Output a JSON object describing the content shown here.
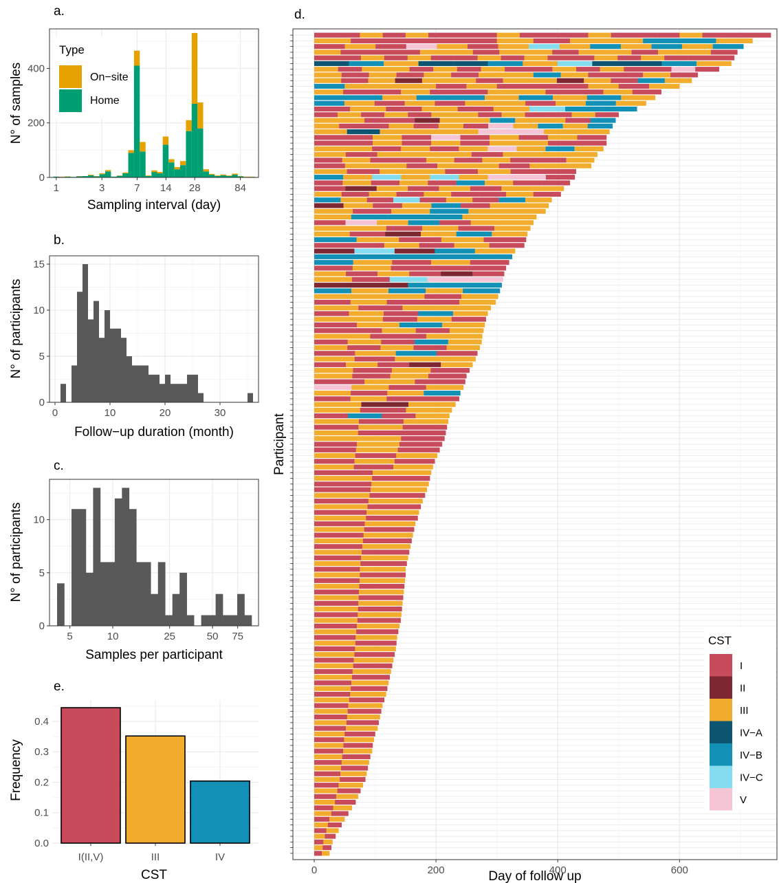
{
  "figure": {
    "colors": {
      "I": "#C84B5C",
      "II": "#7D2733",
      "III": "#F2AD2F",
      "IV-A": "#0D5570",
      "IV-B": "#1390B5",
      "IV-C": "#86DCEF",
      "V": "#F5C5D6",
      "on_site": "#E6A000",
      "home": "#009E73",
      "hist": "#595959",
      "grid_major": "#EBEBEB",
      "grid_minor": "#F5F5F5"
    }
  },
  "chart_data": [
    {
      "panel": "a.",
      "type": "bar",
      "stacked": true,
      "xlabel": "Sampling interval (day)",
      "ylabel": "N° of samples",
      "xscale": "log",
      "xticks": [
        1,
        3,
        7,
        14,
        28,
        84
      ],
      "xtick_labels": [
        "1",
        "3",
        "7",
        "14",
        "28",
        "84"
      ],
      "yticks": [
        0,
        200,
        400
      ],
      "ytick_labels": [
        "0",
        "200",
        "400"
      ],
      "ylim": [
        0,
        545
      ],
      "legend": {
        "title": "Type",
        "placement": "top-left",
        "entries": [
          "On−site",
          "Home"
        ]
      },
      "x": [
        1.0,
        1.15,
        1.32,
        1.52,
        1.74,
        2.0,
        2.3,
        2.64,
        3.03,
        3.48,
        4.0,
        4.6,
        5.28,
        6.06,
        6.96,
        8.0,
        9.19,
        10.6,
        12.1,
        13.9,
        16.0,
        18.4,
        21.1,
        24.3,
        27.9,
        32.0,
        36.8,
        42.2,
        48.5,
        55.7,
        64.0,
        73.5,
        84.4,
        97.0,
        111.0
      ],
      "series": [
        {
          "name": "Home",
          "values": [
            3,
            2,
            3,
            2,
            4,
            5,
            8,
            4,
            12,
            22,
            3,
            6,
            15,
            90,
            410,
            95,
            5,
            20,
            15,
            120,
            55,
            30,
            45,
            170,
            270,
            180,
            22,
            10,
            5,
            8,
            5,
            10,
            4,
            2,
            2
          ]
        },
        {
          "name": "On−site",
          "values": [
            0,
            1,
            1,
            0,
            1,
            0,
            2,
            1,
            3,
            5,
            0,
            1,
            3,
            10,
            55,
            35,
            2,
            6,
            5,
            30,
            12,
            8,
            15,
            40,
            260,
            95,
            8,
            3,
            2,
            3,
            2,
            4,
            1,
            1,
            1
          ]
        }
      ]
    },
    {
      "panel": "b.",
      "type": "bar",
      "xlabel": "Follow−up duration (month)",
      "ylabel": "N° of participants",
      "xlim": [
        0,
        37
      ],
      "xticks": [
        0,
        10,
        20,
        30
      ],
      "xtick_labels": [
        "0",
        "10",
        "20",
        "30"
      ],
      "yticks": [
        0,
        5,
        10,
        15
      ],
      "ytick_labels": [
        "0",
        "5",
        "10",
        "15"
      ],
      "ylim": [
        0,
        15.9
      ],
      "bin_width": 1,
      "x": [
        1.5,
        2.5,
        3.5,
        4.5,
        5.5,
        6.5,
        7.5,
        8.5,
        9.5,
        10.5,
        11.5,
        12.5,
        13.5,
        14.5,
        15.5,
        16.5,
        17.5,
        18.5,
        19.5,
        20.5,
        21.5,
        22.5,
        23.5,
        24.5,
        25.5,
        26.5,
        35.5
      ],
      "values": [
        2,
        0,
        4,
        12,
        15,
        9,
        11,
        7,
        10,
        8,
        8,
        7,
        5,
        4,
        4,
        4,
        3,
        3,
        2,
        3,
        2,
        2,
        2,
        3,
        3,
        1,
        1
      ]
    },
    {
      "panel": "c.",
      "type": "bar",
      "xlabel": "Samples per participant",
      "ylabel": "N° of participants",
      "xscale": "log",
      "xticks": [
        5,
        10,
        25,
        50,
        75
      ],
      "xtick_labels": [
        "5",
        "10",
        "25",
        "50",
        "75"
      ],
      "yticks": [
        0,
        5,
        10
      ],
      "ytick_labels": [
        "0",
        "5",
        "10"
      ],
      "ylim": [
        0,
        13.8
      ],
      "values": [
        4,
        0,
        11,
        11,
        5,
        13,
        6,
        6,
        12,
        13,
        11,
        6,
        6,
        3,
        6,
        1,
        3,
        5,
        1,
        0,
        1,
        1,
        3,
        1,
        1,
        3,
        1
      ]
    },
    {
      "panel": "d.",
      "type": "timeline",
      "xlabel": "Day of follow up",
      "ylabel": "Participant",
      "xlim": [
        -35,
        760
      ],
      "xticks": [
        0,
        200,
        400,
        600
      ],
      "xtick_labels": [
        "0",
        "200",
        "400",
        "600"
      ],
      "n_participants": 145,
      "legend": {
        "title": "CST",
        "placement": "bottom-right",
        "entries": [
          "I",
          "II",
          "III",
          "IV−A",
          "IV−B",
          "IV−C",
          "V"
        ]
      },
      "durations": [
        750,
        720,
        705,
        695,
        690,
        685,
        665,
        630,
        620,
        600,
        570,
        560,
        545,
        530,
        500,
        495,
        490,
        485,
        480,
        480,
        475,
        465,
        460,
        455,
        430,
        428,
        420,
        410,
        405,
        390,
        385,
        380,
        365,
        360,
        355,
        350,
        348,
        345,
        330,
        325,
        320,
        315,
        312,
        310,
        308,
        305,
        302,
        298,
        290,
        285,
        282,
        280,
        278,
        276,
        275,
        272,
        268,
        265,
        260,
        255,
        250,
        248,
        245,
        240,
        238,
        232,
        226,
        222,
        220,
        218,
        216,
        214,
        210,
        206,
        202,
        198,
        195,
        192,
        190,
        188,
        185,
        182,
        178,
        175,
        172,
        170,
        166,
        164,
        162,
        160,
        158,
        156,
        154,
        152,
        150,
        150,
        149,
        148,
        147,
        146,
        145,
        144,
        143,
        142,
        140,
        138,
        136,
        135,
        134,
        132,
        130,
        128,
        126,
        124,
        122,
        120,
        118,
        115,
        112,
        110,
        108,
        106,
        104,
        100,
        98,
        96,
        95,
        92,
        90,
        88,
        86,
        84,
        80,
        76,
        72,
        68,
        62,
        56,
        50,
        45,
        40,
        35,
        30,
        28,
        25
      ],
      "cst_sequences": [
        "I I III I III I I I III I I I III I I I III I I I",
        "III I I I I III I III III IV-B IV-B III",
        "I III I V III I III IV-C III IV-B III IV-B III IV-B",
        "III I I I III III I III III I III III I III III I",
        "I I III I III I I III I III I I III I III I I I",
        "IV-A IV-B III IV-A IV-A IV-B III IV-C IV-A IV-A IV-B III",
        "III I III III I III I III I I III I III I I V I",
        "III I III I III I III III IV-B III I I III I",
        "III I III II III III I III III II III I IV-B III",
        "IV-B III III III I III I I I III I III",
        "III I I III I I III III I I III I",
        "IV-B IV-B III IV-B IV-B III IV-B III IV-B III",
        "IV-B III I III I III III I III IV-B III",
        "I III I III I III IV-C IV-B IV-B",
        "I III I III I III III I III I I III I",
        "III III I I II III III IV-B III III I IV-B",
        "III I I III I III I V III IV-B III IV-B",
        "III IV-A III III III V V III III",
        "I I III I V I III I III I",
        "I I III I III I III III I I",
        "III III I III I III V III IV-B III",
        "III I III III III I III III III",
        "I III I I III I III I I III",
        "I III III I III III I III III",
        "III I III III I III I I",
        "IV-B III IV-C III IV-C III V V I",
        "I III I III I IV-B III I I",
        "I II III I III I III III",
        "III I III I III I I III I",
        "IV-B III I IV-C I III I IV-B III",
        "II III I III IV-B I III III",
        "III I III IV-B III III",
        "III IV-B IV-B IV-B III III",
        "I V III IV-B I III III",
        "III III I III I III",
        "III I II III IV-B III",
        "IV-B III I III I",
        "I I III I III I",
        "II IV-C II IV-B III",
        "IV-B IV-B IV-B",
        "IV-B III I III I",
        "I III I I I",
        "III I III I II I",
        "III I IV-C V V",
        "II II IV-B IV-B",
        "IV-B III IV-B III IV-B",
        "III III III I III",
        "I III I I III",
        "III I III III",
        "I III I IV-B III",
        "III III I III I",
        "I III IV-B III",
        "I I III I III",
        "III I III",
        "I III I IV-B III",
        "III I III I III",
        "I III IV-B I",
        "III I III III",
        "I III I II III",
        "III I III I",
        "III I III I",
        "I III I",
        "V III I III",
        "III I III IV-B",
        "I III I I",
        "III II III",
        "III I III",
        "I IV-B I III",
        "III I III",
        "I III I",
        "III I I",
        "III III I",
        "I III I",
        "I III I",
        "III I III",
        "I III I",
        "III I III",
        "I III",
        "III I",
        "I III",
        "I III",
        "III I",
        "I III",
        "III I",
        "I III",
        "III I",
        "I III",
        "III I",
        "I III",
        "III I",
        "I III",
        "III I",
        "I III",
        "III I",
        "I III",
        "III I",
        "I III",
        "III I",
        "I III",
        "III I",
        "I III",
        "III I",
        "I III",
        "III I",
        "I III",
        "III I",
        "I III",
        "III I",
        "I III",
        "III I",
        "I III",
        "III I",
        "I III",
        "III I",
        "I III",
        "III I",
        "I III",
        "III I",
        "I III",
        "III I",
        "I III",
        "III I",
        "I III",
        "III I",
        "I III",
        "III I",
        "I III",
        "III I",
        "I III",
        "III I",
        "I III",
        "III I",
        "I III",
        "III I",
        "I III",
        "III I",
        "I III",
        "III I",
        "I III",
        "III I",
        "I III",
        "III I",
        "I III",
        "III I",
        "I III",
        "III I"
      ]
    },
    {
      "panel": "e.",
      "type": "bar",
      "xlabel": "CST",
      "ylabel": "Frequency",
      "categories": [
        "I(II,V)",
        "III",
        "IV"
      ],
      "values": [
        0.445,
        0.352,
        0.204
      ],
      "yticks": [
        0.0,
        0.1,
        0.2,
        0.3,
        0.4
      ],
      "ytick_labels": [
        "0.0",
        "0.1",
        "0.2",
        "0.3",
        "0.4"
      ],
      "ylim": [
        0,
        0.47
      ]
    }
  ]
}
